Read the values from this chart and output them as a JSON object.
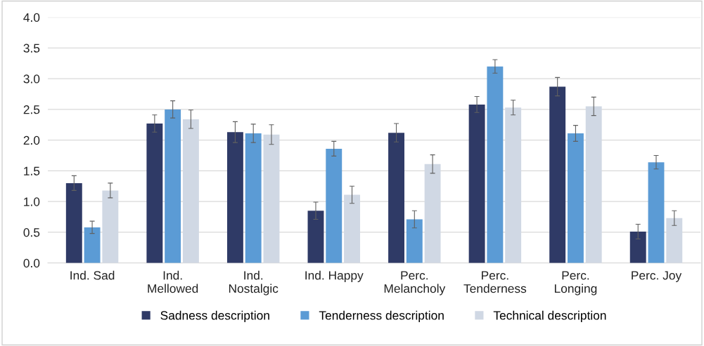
{
  "chart_data": {
    "type": "bar",
    "categories": [
      "Ind. Sad",
      "Ind.\nMellowed",
      "Ind.\nNostalgic",
      "Ind. Happy",
      "Perc.\nMelancholy",
      "Perc.\nTenderness",
      "Perc.\nLonging",
      "Perc. Joy"
    ],
    "series": [
      {
        "name": "Sadness description",
        "color": "#2f3a66",
        "values": [
          1.3,
          2.27,
          2.13,
          0.85,
          2.12,
          2.58,
          2.87,
          0.51
        ],
        "errors": [
          0.12,
          0.14,
          0.17,
          0.14,
          0.15,
          0.13,
          0.15,
          0.12
        ]
      },
      {
        "name": "Tenderness description",
        "color": "#5b9bd5",
        "values": [
          0.58,
          2.5,
          2.11,
          1.86,
          0.71,
          3.2,
          2.11,
          1.64
        ],
        "errors": [
          0.1,
          0.14,
          0.15,
          0.12,
          0.14,
          0.11,
          0.13,
          0.11
        ]
      },
      {
        "name": "Technical description",
        "color": "#d0d8e4",
        "values": [
          1.18,
          2.34,
          2.09,
          1.11,
          1.61,
          2.53,
          2.55,
          0.73
        ],
        "errors": [
          0.12,
          0.15,
          0.16,
          0.14,
          0.15,
          0.12,
          0.15,
          0.12
        ]
      }
    ],
    "ylim": [
      0,
      4
    ],
    "yticks": [
      {
        "value": 0,
        "label": "0.0"
      },
      0.5,
      {
        "value": 1,
        "label": "1.0"
      },
      1.5,
      {
        "value": 2,
        "label": "2.0"
      },
      2.5,
      {
        "value": 3,
        "label": "3.0"
      },
      3.5,
      {
        "value": 4,
        "label": "4.0"
      }
    ],
    "grid": "y",
    "legend": "bottom"
  }
}
